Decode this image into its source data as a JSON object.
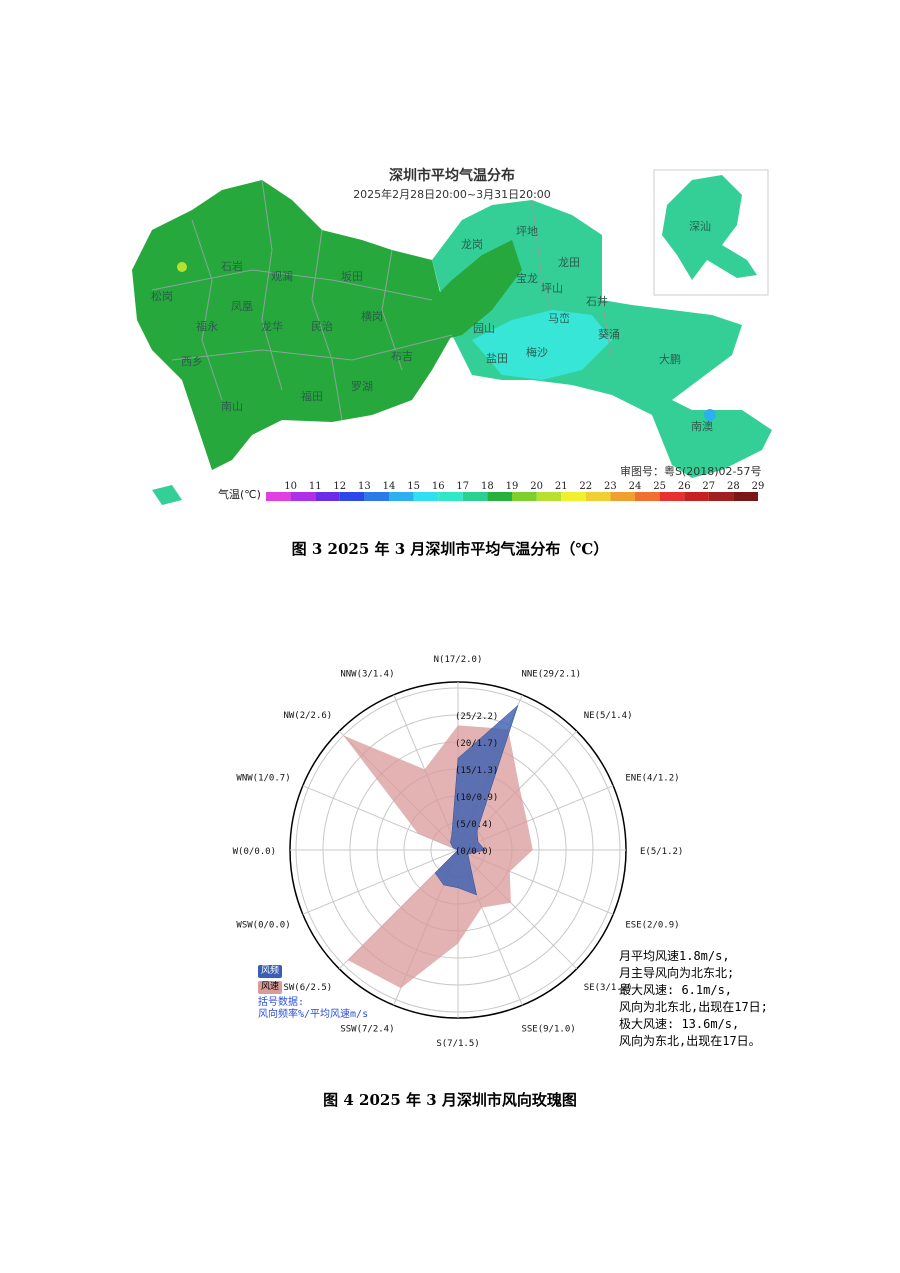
{
  "figure1": {
    "title": "深圳市平均气温分布",
    "period": "2025年2月28日20:00~3月31日20:00",
    "approval": "审图号：粤S(2018)02-57号",
    "legend_label": "气温(℃)",
    "legend": [
      {
        "v": "10",
        "c": "#e040e0"
      },
      {
        "v": "11",
        "c": "#b030e8"
      },
      {
        "v": "12",
        "c": "#6a2ce8"
      },
      {
        "v": "13",
        "c": "#2c48e8"
      },
      {
        "v": "14",
        "c": "#2c7ae8"
      },
      {
        "v": "15",
        "c": "#2cb0f0"
      },
      {
        "v": "16",
        "c": "#30e0f0"
      },
      {
        "v": "17",
        "c": "#30e8c8"
      },
      {
        "v": "18",
        "c": "#2cd090"
      },
      {
        "v": "19",
        "c": "#26b23a"
      },
      {
        "v": "20",
        "c": "#7ccf2c"
      },
      {
        "v": "21",
        "c": "#b8e030"
      },
      {
        "v": "22",
        "c": "#f0f030"
      },
      {
        "v": "23",
        "c": "#f0d030"
      },
      {
        "v": "24",
        "c": "#f0a030"
      },
      {
        "v": "25",
        "c": "#f07030"
      },
      {
        "v": "26",
        "c": "#e83030"
      },
      {
        "v": "27",
        "c": "#c82020"
      },
      {
        "v": "28",
        "c": "#a02020"
      },
      {
        "v": "29",
        "c": "#7a1818"
      }
    ],
    "places": [
      "龙岗",
      "坪地",
      "宝龙",
      "龙田",
      "坪山",
      "石井",
      "马峦",
      "葵涌",
      "大鹏",
      "南澳",
      "盐田",
      "梅沙",
      "园山",
      "深汕",
      "松岗",
      "福永",
      "凤凰",
      "西乡",
      "石岩",
      "观澜",
      "龙华",
      "坂田",
      "民治",
      "南山",
      "福田",
      "罗湖",
      "横岗",
      "布吉"
    ],
    "caption": "图 3   2025 年 3 月深圳市平均气温分布（℃）"
  },
  "figure2": {
    "directions": [
      {
        "label": "N(17/2.0)",
        "freq": 17,
        "speed": 2.0
      },
      {
        "label": "NNE(29/2.1)",
        "freq": 29,
        "speed": 2.1
      },
      {
        "label": "NE(5/1.4)",
        "freq": 5,
        "speed": 1.4
      },
      {
        "label": "ENE(4/1.2)",
        "freq": 4,
        "speed": 1.2
      },
      {
        "label": "E(5/1.2)",
        "freq": 5,
        "speed": 1.2
      },
      {
        "label": "ESE(2/0.9)",
        "freq": 2,
        "speed": 0.9
      },
      {
        "label": "SE(3/1.2)",
        "freq": 3,
        "speed": 1.2
      },
      {
        "label": "SSE(9/1.0)",
        "freq": 9,
        "speed": 1.0
      },
      {
        "label": "S(7/1.5)",
        "freq": 7,
        "speed": 1.5
      },
      {
        "label": "SSW(7/2.4)",
        "freq": 7,
        "speed": 2.4
      },
      {
        "label": "SW(6/2.5)",
        "freq": 6,
        "speed": 2.5
      },
      {
        "label": "WSW(0/0.0)",
        "freq": 0,
        "speed": 0.0
      },
      {
        "label": "W(0/0.0)",
        "freq": 0,
        "speed": 0.0
      },
      {
        "label": "WNW(1/0.7)",
        "freq": 1,
        "speed": 0.7
      },
      {
        "label": "NW(2/2.6)",
        "freq": 2,
        "speed": 2.6
      },
      {
        "label": "NNW(3/1.4)",
        "freq": 3,
        "speed": 1.4
      }
    ],
    "rings": [
      "(0/0.0)",
      "(5/0.4)",
      "(10/0.9)",
      "(15/1.3)",
      "(20/1.7)",
      "(25/2.2)"
    ],
    "ring_max_freq": 30,
    "ring_max_speed": 2.6,
    "legend": {
      "freq": "风频",
      "speed": "风速",
      "note1": "括号数据:",
      "note2": "风向频率%/平均风速m/s"
    },
    "colors": {
      "freq": "#3a5fb0",
      "speed": "#d99a9a"
    },
    "summary": [
      "月平均风速1.8m/s,",
      "月主导风向为北东北;",
      "最大风速: 6.1m/s,",
      "风向为北东北,出现在17日;",
      "极大风速: 13.6m/s,",
      "风向为东北,出现在17日。"
    ],
    "caption": "图 4   2025 年 3 月深圳市风向玫瑰图"
  }
}
